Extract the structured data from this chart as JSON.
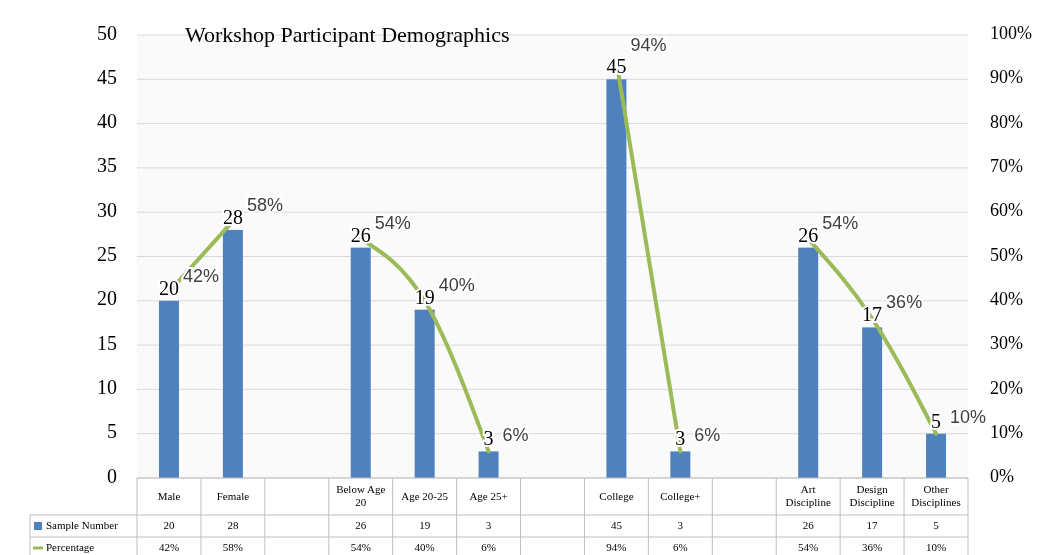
{
  "chart_data": {
    "type": "bar",
    "title": "Workshop Participant Demographics",
    "categories": [
      "Male",
      "Female",
      null,
      "Below Age 20",
      "Age 20-25",
      "Age 25+",
      null,
      "College",
      "College+",
      null,
      "Art Discipline",
      "Design Discipline",
      "Other Disciplines"
    ],
    "series": [
      {
        "name": "Sample Number",
        "color": "#4f81bd",
        "values": [
          20,
          28,
          null,
          26,
          19,
          3,
          null,
          45,
          3,
          null,
          26,
          17,
          5
        ],
        "value_labels": [
          "20",
          "28",
          null,
          "26",
          "19",
          "3",
          null,
          "45",
          "3",
          null,
          "26",
          "17",
          "5"
        ]
      },
      {
        "name": "Percentage",
        "type": "line",
        "axis": "y2",
        "color": "#9bbb59",
        "values": [
          42,
          58,
          null,
          54,
          40,
          6,
          null,
          94,
          6,
          null,
          54,
          36,
          10
        ],
        "value_labels": [
          "42%",
          "58%",
          null,
          "54%",
          "40%",
          "6%",
          null,
          "94%",
          "6%",
          null,
          "54%",
          "36%",
          "10%"
        ]
      }
    ],
    "ylim": [
      0,
      50
    ],
    "yticks": [
      0,
      5,
      10,
      15,
      20,
      25,
      30,
      35,
      40,
      45,
      50
    ],
    "y2lim": [
      0,
      100
    ],
    "y2ticks": [
      {
        "value": 0,
        "label": "0%"
      },
      {
        "value": 10,
        "label": "10%"
      },
      {
        "value": 20,
        "label": "20%"
      },
      {
        "value": 30,
        "label": "30%"
      },
      {
        "value": 40,
        "label": "40%"
      },
      {
        "value": 50,
        "label": "50%"
      },
      {
        "value": 60,
        "label": "60%"
      },
      {
        "value": 70,
        "label": "70%"
      },
      {
        "value": 80,
        "label": "80%"
      },
      {
        "value": 90,
        "label": "90%"
      },
      {
        "value": 100,
        "label": "100%"
      }
    ],
    "grid": "y",
    "legend": "bottom",
    "marker": "none",
    "line_style": "solid"
  }
}
